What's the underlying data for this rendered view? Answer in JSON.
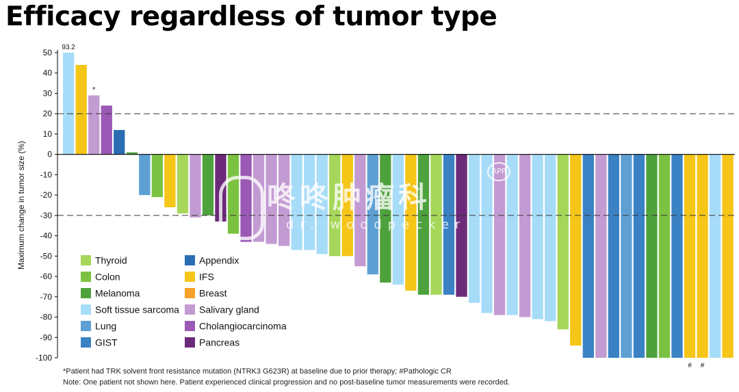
{
  "title": "Efficacy regardless of tumor type",
  "footnotes": {
    "line1": "*Patient had TRK solvent front resistance mutation (NTRK3 G623R) at baseline due to prior therapy; #Pathologic CR",
    "line2": "Note: One patient not shown here. Patient experienced clinical progression and no post-baseline tumor measurements were recorded."
  },
  "watermark": {
    "main": "咚咚肿瘤科",
    "sub": "dr. woodpecker",
    "badge": "APP"
  },
  "colors": {
    "Thyroid": "#a6d65a",
    "Colon": "#7cc242",
    "Melanoma": "#4ea23c",
    "Soft tissue sarcoma": "#a7dcf8",
    "Lung": "#5ea0d4",
    "GIST": "#3b82c4",
    "Appendix": "#2a6db2",
    "IFS": "#f5c518",
    "Breast": "#f7a128",
    "Salivary gland": "#c39bd3",
    "Cholangiocarcinoma": "#9b59b6",
    "Pancreas": "#6d2a7a"
  },
  "chart_data": {
    "type": "bar",
    "ylabel": "Maximum change in tumor size (%)",
    "ylim": [
      -100,
      50
    ],
    "yticks": [
      50,
      40,
      30,
      20,
      10,
      0,
      -10,
      -20,
      -30,
      -40,
      -50,
      -60,
      -70,
      -80,
      -90,
      -100
    ],
    "reference_lines": [
      20,
      -30
    ],
    "legend": [
      [
        "Thyroid",
        "Appendix"
      ],
      [
        "Colon",
        "IFS"
      ],
      [
        "Melanoma",
        "Breast"
      ],
      [
        "Soft tissue sarcoma",
        "Salivary gland"
      ],
      [
        "Lung",
        "Cholangiocarcinoma"
      ],
      [
        "GIST",
        "Pancreas"
      ]
    ],
    "series": [
      {
        "tumor": "Soft tissue sarcoma",
        "value": 93.2,
        "label": "93.2"
      },
      {
        "tumor": "IFS",
        "value": 44
      },
      {
        "tumor": "Salivary gland",
        "value": 29,
        "label": "*"
      },
      {
        "tumor": "Cholangiocarcinoma",
        "value": 24
      },
      {
        "tumor": "Appendix",
        "value": 12
      },
      {
        "tumor": "Melanoma",
        "value": 1
      },
      {
        "tumor": "Lung",
        "value": -20
      },
      {
        "tumor": "Colon",
        "value": -21
      },
      {
        "tumor": "IFS",
        "value": -26
      },
      {
        "tumor": "Thyroid",
        "value": -29
      },
      {
        "tumor": "Salivary gland",
        "value": -31
      },
      {
        "tumor": "Melanoma",
        "value": -30
      },
      {
        "tumor": "Pancreas",
        "value": -33
      },
      {
        "tumor": "Colon",
        "value": -39
      },
      {
        "tumor": "Cholangiocarcinoma",
        "value": -43
      },
      {
        "tumor": "Salivary gland",
        "value": -43
      },
      {
        "tumor": "Salivary gland",
        "value": -44
      },
      {
        "tumor": "Salivary gland",
        "value": -45
      },
      {
        "tumor": "Soft tissue sarcoma",
        "value": -47
      },
      {
        "tumor": "Soft tissue sarcoma",
        "value": -47
      },
      {
        "tumor": "Soft tissue sarcoma",
        "value": -49
      },
      {
        "tumor": "Thyroid",
        "value": -50
      },
      {
        "tumor": "IFS",
        "value": -50
      },
      {
        "tumor": "Salivary gland",
        "value": -55
      },
      {
        "tumor": "Lung",
        "value": -59
      },
      {
        "tumor": "Melanoma",
        "value": -63
      },
      {
        "tumor": "Soft tissue sarcoma",
        "value": -64
      },
      {
        "tumor": "IFS",
        "value": -67
      },
      {
        "tumor": "Melanoma",
        "value": -69
      },
      {
        "tumor": "Thyroid",
        "value": -69
      },
      {
        "tumor": "GIST",
        "value": -69
      },
      {
        "tumor": "Pancreas",
        "value": -70
      },
      {
        "tumor": "Soft tissue sarcoma",
        "value": -73
      },
      {
        "tumor": "Soft tissue sarcoma",
        "value": -78
      },
      {
        "tumor": "Salivary gland",
        "value": -79
      },
      {
        "tumor": "Soft tissue sarcoma",
        "value": -79
      },
      {
        "tumor": "Salivary gland",
        "value": -80
      },
      {
        "tumor": "Soft tissue sarcoma",
        "value": -81
      },
      {
        "tumor": "Soft tissue sarcoma",
        "value": -82
      },
      {
        "tumor": "Thyroid",
        "value": -86
      },
      {
        "tumor": "IFS",
        "value": -94
      },
      {
        "tumor": "GIST",
        "value": -100
      },
      {
        "tumor": "Salivary gland",
        "value": -100
      },
      {
        "tumor": "GIST",
        "value": -100
      },
      {
        "tumor": "Lung",
        "value": -100
      },
      {
        "tumor": "GIST",
        "value": -100
      },
      {
        "tumor": "Melanoma",
        "value": -100
      },
      {
        "tumor": "Colon",
        "value": -100
      },
      {
        "tumor": "GIST",
        "value": -100
      },
      {
        "tumor": "IFS",
        "value": -100,
        "label": "#"
      },
      {
        "tumor": "IFS",
        "value": -100,
        "label": "#"
      },
      {
        "tumor": "Soft tissue sarcoma",
        "value": -100
      },
      {
        "tumor": "IFS",
        "value": -100
      }
    ]
  }
}
